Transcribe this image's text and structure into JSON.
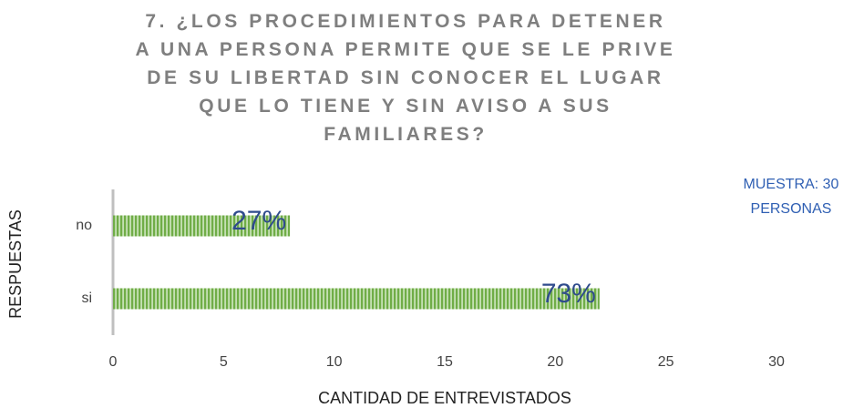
{
  "chart_data": {
    "type": "bar",
    "orientation": "horizontal",
    "title": "7. ¿LOS PROCEDIMIENTOS PARA DETENER\nA UNA PERSONA PERMITE QUE SE LE PRIVE\nDE SU LIBERTAD SIN CONOCER EL LUGAR\nQUE LO TIENE Y SIN AVISO A SUS\nFAMILIARES?",
    "categories": [
      "no",
      "si"
    ],
    "values": [
      8,
      22
    ],
    "color": "#70ad47",
    "bar_annotations": [
      "27%",
      "73%"
    ],
    "annotations": [
      "MUESTRA: 30",
      "PERSONAS"
    ],
    "xlabel": "CANTIDAD DE ENTREVISTADOS",
    "ylabel": "RESPUESTAS",
    "xlim": [
      0,
      30
    ],
    "xticks": [
      0,
      5,
      10,
      15,
      20,
      25,
      30
    ],
    "grid": false
  }
}
